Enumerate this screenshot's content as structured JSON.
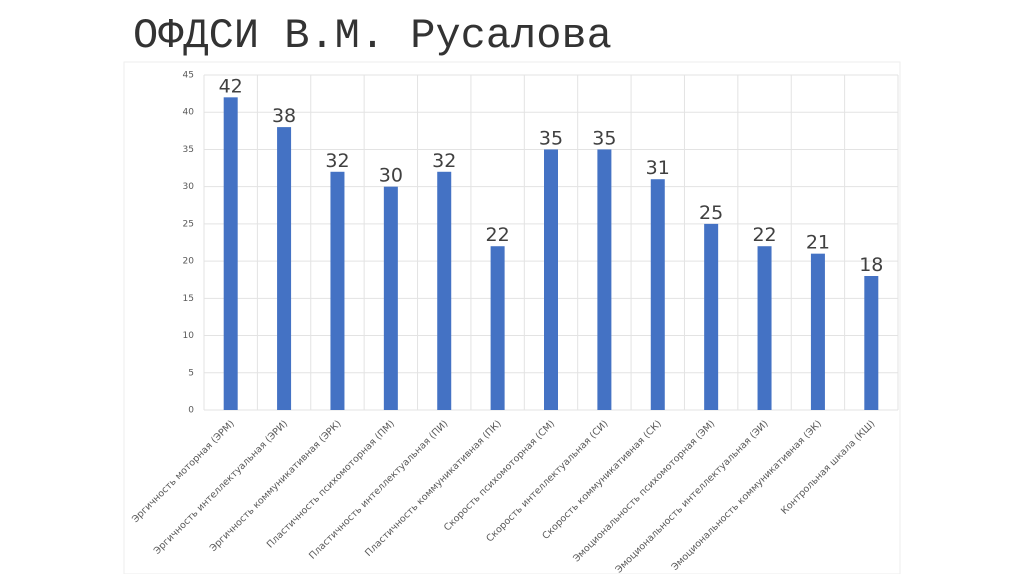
{
  "chart_data": {
    "type": "bar",
    "title": "ОФДСИ В.М. Русалова",
    "categories": [
      "Эргичность моторная (ЭРМ)",
      "Эргичность интеллектуальная (ЭРИ)",
      "Эргичность коммуникативная (ЭРК)",
      "Пластичность психомоторная (ПМ)",
      "Пластичность интеллектуальная (ПИ)",
      "Пластичность коммуникативная (ПК)",
      "Скорость психомоторная (СМ)",
      "Скорость интеллектуальная (СИ)",
      "Скорость коммуникативная (СК)",
      "Эмоциональность психомоторная (ЭМ)",
      "Эмоциональность интеллектуальная (ЭИ)",
      "Эмоциональность коммуникативная (ЭК)",
      "Контрольная шкала (КШ)"
    ],
    "values": [
      42,
      38,
      32,
      30,
      32,
      22,
      35,
      35,
      31,
      25,
      22,
      21,
      18
    ],
    "color": "#4472c4",
    "ylim": [
      0,
      45
    ],
    "yticks": [
      0,
      5,
      10,
      15,
      20,
      25,
      30,
      35,
      40,
      45
    ],
    "grid": true
  }
}
